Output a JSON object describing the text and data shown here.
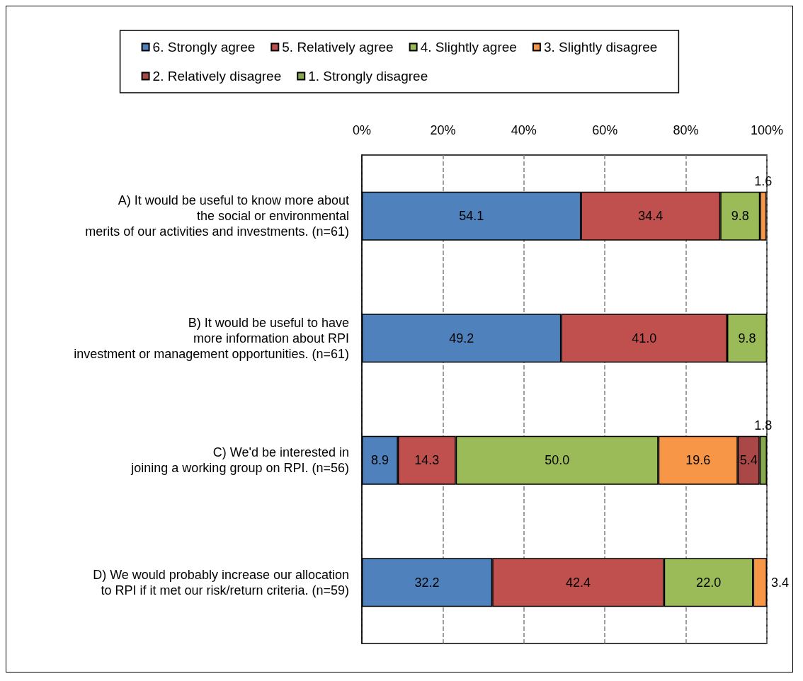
{
  "chart_data": {
    "type": "bar",
    "orientation": "horizontal",
    "stacked": true,
    "categories": [
      "A) It would be useful to know more about\nthe social or environmental\nmerits of our activities and investments. (n=61)",
      "B) It would be useful to have\nmore information about RPI\ninvestment or management opportunities. (n=61)",
      "C) We'd be interested in\njoining a working group on RPI. (n=56)",
      "D) We would probably increase our allocation\nto RPI if it met our risk/return criteria. (n=59)"
    ],
    "series": [
      {
        "name": "6. Strongly agree",
        "color": "#4f81bd",
        "values": [
          54.1,
          49.2,
          8.9,
          32.2
        ],
        "value_labels": [
          "54.1",
          "49.2",
          "8.9",
          "32.2"
        ]
      },
      {
        "name": "5. Relatively agree",
        "color": "#c0504d",
        "values": [
          34.4,
          41.0,
          14.3,
          42.4
        ],
        "value_labels": [
          "34.4",
          "41.0",
          "14.3",
          "42.4"
        ]
      },
      {
        "name": "4. Slightly agree",
        "color": "#9bbb59",
        "values": [
          9.8,
          9.8,
          50.0,
          22.0
        ],
        "value_labels": [
          "9.8",
          "9.8",
          "50.0",
          "22.0"
        ]
      },
      {
        "name": "3. Slightly disagree",
        "color": "#f79646",
        "values": [
          1.6,
          null,
          19.6,
          3.4
        ],
        "value_labels": [
          "1.6",
          null,
          "19.6",
          "3.4"
        ]
      },
      {
        "name": "2. Relatively disagree",
        "color": "#a94846",
        "values": [
          null,
          null,
          5.4,
          null
        ],
        "value_labels": [
          null,
          null,
          "5.4",
          null
        ]
      },
      {
        "name": "1. Strongly disagree",
        "color": "#88a84e",
        "values": [
          null,
          null,
          1.8,
          null
        ],
        "value_labels": [
          null,
          null,
          "1.8",
          null
        ]
      }
    ],
    "xlim": [
      0,
      100
    ],
    "xticks": [
      {
        "value": 0,
        "label": "0%"
      },
      {
        "value": 20,
        "label": "20%"
      },
      {
        "value": 40,
        "label": "40%"
      },
      {
        "value": 60,
        "label": "60%"
      },
      {
        "value": 80,
        "label": "80%"
      },
      {
        "value": 100,
        "label": "100%"
      }
    ],
    "grid": "x",
    "legend": "top"
  }
}
